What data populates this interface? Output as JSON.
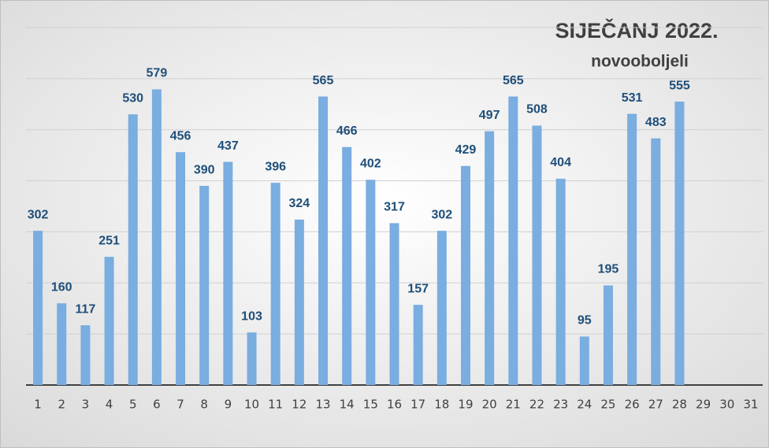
{
  "chart_data": {
    "type": "bar",
    "title": "SIJEČANJ 2022.",
    "subtitle": "novooboljeli",
    "categories": [
      "1",
      "2",
      "3",
      "4",
      "5",
      "6",
      "7",
      "8",
      "9",
      "10",
      "11",
      "12",
      "13",
      "14",
      "15",
      "16",
      "17",
      "18",
      "19",
      "20",
      "21",
      "22",
      "23",
      "24",
      "25",
      "26",
      "27",
      "28",
      "29",
      "30",
      "31"
    ],
    "values": [
      302,
      160,
      117,
      251,
      530,
      579,
      456,
      390,
      437,
      103,
      396,
      324,
      565,
      466,
      402,
      317,
      157,
      302,
      429,
      497,
      565,
      508,
      404,
      95,
      195,
      531,
      483,
      555,
      null,
      null,
      null
    ],
    "color": "#7aade0",
    "ylim": [
      0,
      700
    ],
    "yticks": [
      0,
      100,
      200,
      300,
      400,
      500,
      600,
      700
    ],
    "ytick_labels": false,
    "grid": true
  }
}
